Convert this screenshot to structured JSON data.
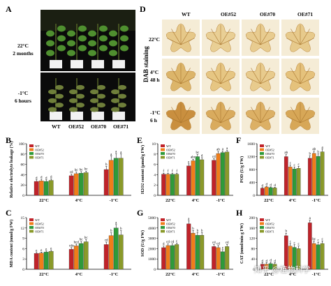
{
  "panel_labels": {
    "A": "A",
    "B": "B",
    "C": "C",
    "D": "D",
    "E": "E",
    "F": "F",
    "G": "G",
    "H": "H"
  },
  "panelA": {
    "row1_label": [
      "22°C",
      "2 months"
    ],
    "row2_label": [
      "-1°C",
      "6 hours"
    ],
    "genotypes": [
      "WT",
      "OE#52",
      "OE#70",
      "OE#71"
    ]
  },
  "panelD": {
    "side_label": "DAB staining",
    "columns": [
      "WT",
      "OE#52",
      "OE#70",
      "OE#71"
    ],
    "rows": [
      [
        "22°C"
      ],
      [
        "4°C",
        "48 h"
      ],
      [
        "-1°C",
        "6 h"
      ]
    ]
  },
  "legend": [
    "WT",
    "OE#52",
    "OE#70",
    "OE#71"
  ],
  "colors": {
    "WT": "#c0232a",
    "OE#52": "#f07d1a",
    "OE#70": "#2e9a3a",
    "OE#71": "#8a9a2a",
    "error": "#000000"
  },
  "watermark": "知乎 @植物科学",
  "chart_data": [
    {
      "id": "B",
      "type": "bar",
      "ylabel": "Relative electrolyte leakage (%)",
      "ylim": [
        0,
        100
      ],
      "yticks": [
        0,
        20,
        40,
        60,
        80,
        100
      ],
      "categories": [
        "22°C",
        "4°C",
        "-1°C"
      ],
      "series": [
        {
          "name": "WT",
          "values": [
            27,
            38,
            50
          ],
          "errors": [
            3,
            3,
            6
          ]
        },
        {
          "name": "OE#52",
          "values": [
            28,
            42,
            68
          ],
          "errors": [
            3,
            3,
            8
          ]
        },
        {
          "name": "OE#70",
          "values": [
            27,
            43,
            72
          ],
          "errors": [
            3,
            3,
            9
          ]
        },
        {
          "name": "OE#71",
          "values": [
            29,
            44,
            72
          ],
          "errors": [
            3,
            3,
            8
          ]
        }
      ],
      "letters": [
        [
          "d",
          "d",
          "d",
          "d"
        ],
        [
          "cd",
          "bc",
          "bc",
          "bc"
        ],
        [
          "b",
          "a",
          "a",
          "a"
        ]
      ]
    },
    {
      "id": "C",
      "type": "bar",
      "ylabel": "MDA content (nmol/g FW)",
      "ylim": [
        0,
        15
      ],
      "yticks": [
        0,
        3,
        6,
        9,
        12,
        15
      ],
      "categories": [
        "22°C",
        "4°C",
        "-1°C"
      ],
      "series": [
        {
          "name": "WT",
          "values": [
            4.6,
            5.8,
            7.2
          ],
          "errors": [
            0.3,
            0.5,
            0.7
          ]
        },
        {
          "name": "OE#52",
          "values": [
            4.7,
            6.8,
            9.8
          ],
          "errors": [
            0.3,
            0.5,
            0.8
          ]
        },
        {
          "name": "OE#70",
          "values": [
            5.0,
            7.5,
            12.0
          ],
          "errors": [
            0.3,
            0.6,
            1.0
          ]
        },
        {
          "name": "OE#71",
          "values": [
            5.2,
            8.0,
            10.0
          ],
          "errors": [
            0.3,
            0.6,
            1.2
          ]
        }
      ],
      "letters": [
        [
          "e",
          "e",
          "e",
          "e"
        ],
        [
          "cde",
          "bcd",
          "bc",
          "bc"
        ],
        [
          "cd",
          "b",
          "a",
          "b"
        ]
      ]
    },
    {
      "id": "E",
      "type": "bar",
      "ylabel": "H2O2 content (μmol/g FW)",
      "ylim": [
        0,
        10
      ],
      "yticks": [
        0,
        2,
        4,
        6,
        8,
        10
      ],
      "categories": [
        "22°C",
        "4°C",
        "-1°C"
      ],
      "series": [
        {
          "name": "WT",
          "values": [
            4.1,
            5.7,
            6.8
          ],
          "errors": [
            0.2,
            0.4,
            0.3
          ]
        },
        {
          "name": "OE#52",
          "values": [
            4.1,
            6.7,
            8.1
          ],
          "errors": [
            0.2,
            0.3,
            0.4
          ]
        },
        {
          "name": "OE#70",
          "values": [
            4.1,
            7.5,
            8.3
          ],
          "errors": [
            0.2,
            0.4,
            0.3
          ]
        },
        {
          "name": "OE#71",
          "values": [
            4.1,
            6.9,
            8.4
          ],
          "errors": [
            0.2,
            0.4,
            0.3
          ]
        }
      ],
      "letters": [
        [
          "f",
          "f",
          "f",
          "f"
        ],
        [
          "e",
          "abc",
          "bc",
          "d"
        ],
        [
          "cd",
          "ab",
          "a",
          "a"
        ]
      ]
    },
    {
      "id": "F",
      "type": "bar",
      "ylabel": "POD (U/g FW)",
      "ylim": [
        0,
        1600
      ],
      "yticks": [
        0,
        400,
        800,
        1200,
        1600
      ],
      "categories": [
        "22°C",
        "4°C",
        "-1°C"
      ],
      "series": [
        {
          "name": "WT",
          "values": [
            220,
            1200,
            1150
          ],
          "errors": [
            20,
            60,
            80
          ]
        },
        {
          "name": "OE#52",
          "values": [
            260,
            880,
            1300
          ],
          "errors": [
            20,
            60,
            70
          ]
        },
        {
          "name": "OE#70",
          "values": [
            240,
            820,
            1210
          ],
          "errors": [
            20,
            60,
            80
          ]
        },
        {
          "name": "OE#71",
          "values": [
            230,
            840,
            1350
          ],
          "errors": [
            20,
            60,
            80
          ]
        }
      ],
      "letters": [
        [
          "d",
          "d",
          "d",
          "d"
        ],
        [
          "ab",
          "c",
          "c",
          "c"
        ],
        [
          "b",
          "ab",
          "b",
          "a"
        ]
      ]
    },
    {
      "id": "G",
      "type": "bar",
      "ylabel": "SOD (U/g FW)",
      "ylim": [
        0,
        5000
      ],
      "yticks": [
        0,
        1000,
        2000,
        3000,
        4000,
        5000
      ],
      "categories": [
        "22°C",
        "4°C",
        "-1°C"
      ],
      "series": [
        {
          "name": "WT",
          "values": [
            2100,
            4400,
            2200
          ],
          "errors": [
            150,
            300,
            200
          ]
        },
        {
          "name": "OE#52",
          "values": [
            2300,
            3500,
            2100
          ],
          "errors": [
            150,
            250,
            200
          ]
        },
        {
          "name": "OE#70",
          "values": [
            2300,
            3300,
            1700
          ],
          "errors": [
            150,
            250,
            200
          ]
        },
        {
          "name": "OE#71",
          "values": [
            2400,
            3300,
            2200
          ],
          "errors": [
            150,
            250,
            200
          ]
        }
      ],
      "letters": [
        [
          "d",
          "cd",
          "cd",
          "c"
        ],
        [
          "a",
          "b",
          "b",
          "b"
        ],
        [
          "cd",
          "cd",
          "e",
          "cd"
        ]
      ]
    },
    {
      "id": "H",
      "type": "bar",
      "ylabel": "CAT (nmol/min g FW)",
      "ylim": [
        0,
        200
      ],
      "yticks": [
        0,
        40,
        80,
        120,
        160,
        200
      ],
      "categories": [
        "22°C",
        "4°C",
        "-1°C"
      ],
      "series": [
        {
          "name": "WT",
          "values": [
            20,
            130,
            180
          ],
          "errors": [
            5,
            10,
            10
          ]
        },
        {
          "name": "OE#52",
          "values": [
            20,
            90,
            100
          ],
          "errors": [
            5,
            10,
            10
          ]
        },
        {
          "name": "OE#70",
          "values": [
            22,
            85,
            95
          ],
          "errors": [
            5,
            10,
            10
          ]
        },
        {
          "name": "OE#71",
          "values": [
            20,
            80,
            100
          ],
          "errors": [
            5,
            10,
            10
          ]
        }
      ],
      "letters": [
        [
          "d",
          "d",
          "d",
          "d"
        ],
        [
          "b",
          "c",
          "c",
          "c"
        ],
        [
          "a",
          "bc",
          "c",
          "c"
        ]
      ]
    }
  ]
}
